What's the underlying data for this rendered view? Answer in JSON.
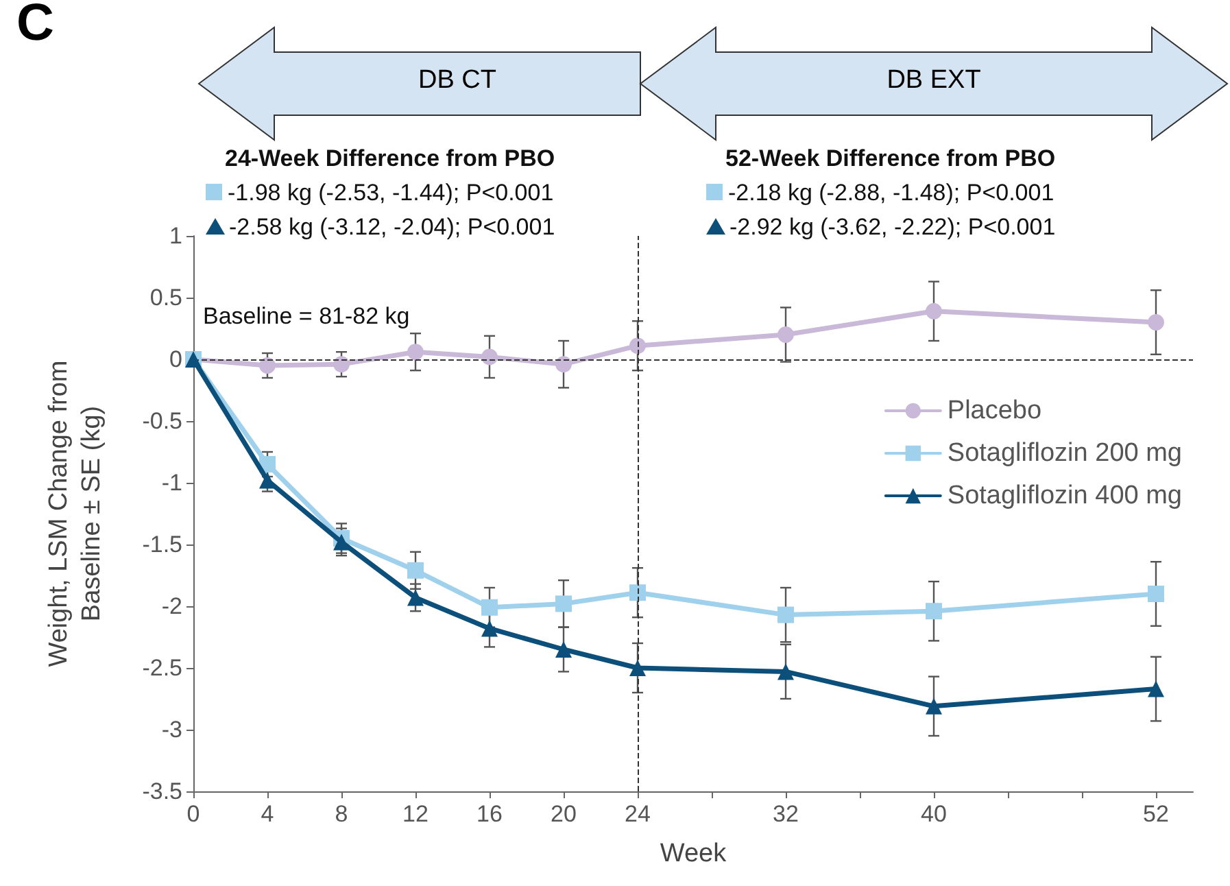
{
  "chart_data": {
    "type": "line",
    "xlabel": "Week",
    "ylabel": "Weight, LSM Change from\nBaseline ± SE (kg)",
    "annotations": [
      "C",
      "DB CT",
      "DB EXT",
      "24-Week Difference from PBO",
      "-1.98 kg (-2.53, -1.44); P<0.001",
      "-2.58 kg (-3.12, -2.04); P<0.001",
      "52-Week Difference from PBO",
      "-2.18 kg (-2.88, -1.48); P<0.001",
      "-2.92 kg (-3.62, -2.22); P<0.001",
      "Baseline = 81-82 kg"
    ],
    "x": [
      0,
      4,
      8,
      12,
      16,
      20,
      24,
      32,
      40,
      52
    ],
    "series": [
      {
        "name": "Placebo",
        "color": "#c9b8d8",
        "marker": "circle",
        "values": [
          0,
          -0.05,
          -0.04,
          0.06,
          0.02,
          -0.04,
          0.11,
          0.2,
          0.39,
          0.3
        ],
        "errors": [
          null,
          0.1,
          0.1,
          0.15,
          0.17,
          0.19,
          0.2,
          0.22,
          0.24,
          0.26
        ]
      },
      {
        "name": "Sotagliflozin 200 mg",
        "color": "#9fd0ec",
        "marker": "square",
        "values": [
          0,
          -0.85,
          -1.45,
          -1.71,
          -2.01,
          -1.98,
          -1.89,
          -2.07,
          -2.04,
          -1.9
        ],
        "errors": [
          null,
          0.1,
          0.12,
          0.15,
          0.16,
          0.19,
          0.2,
          0.22,
          0.24,
          0.26
        ]
      },
      {
        "name": "Sotagliflozin 400 mg",
        "color": "#0b4f7a",
        "marker": "triangle",
        "values": [
          0,
          -0.98,
          -1.48,
          -1.93,
          -2.18,
          -2.35,
          -2.5,
          -2.53,
          -2.81,
          -2.67
        ],
        "errors": [
          null,
          0.09,
          0.11,
          0.11,
          0.15,
          0.18,
          0.2,
          0.22,
          0.24,
          0.26
        ]
      }
    ],
    "xlim": [
      0,
      54
    ],
    "xticks": [
      0,
      4,
      8,
      12,
      16,
      20,
      24,
      {
        "value": 28,
        "label": null
      },
      32,
      {
        "value": 36,
        "label": null
      },
      40,
      {
        "value": 44,
        "label": null
      },
      {
        "value": 48,
        "label": null
      },
      52
    ],
    "ylim": [
      -3.5,
      1
    ],
    "yticks": [
      -3.5,
      -3,
      -2.5,
      -2,
      -1.5,
      -1,
      -0.5,
      0,
      0.5,
      1
    ],
    "ref_lines": [
      {
        "axis": "y",
        "value": 0,
        "color": "#333333",
        "line_style": "dashed"
      },
      {
        "axis": "x",
        "value": 24,
        "color": "#333333",
        "line_style": "dashed"
      }
    ],
    "grid": false,
    "legend": "right",
    "line_style": "solid"
  }
}
